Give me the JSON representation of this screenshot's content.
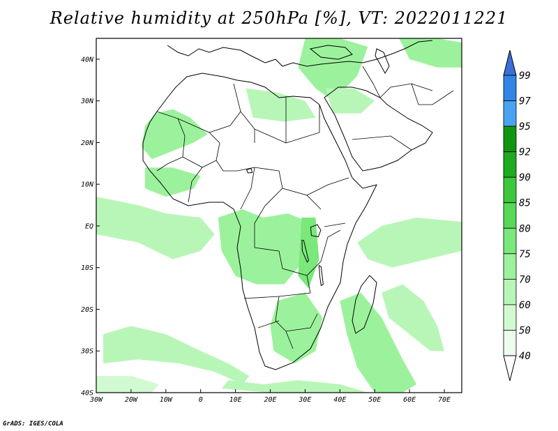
{
  "title": "Relative humidity at 250hPa [%], VT: 2022011221",
  "credit": "GrADS: IGES/COLA",
  "map": {
    "lon_range": [
      -30,
      75
    ],
    "lat_range": [
      -40,
      45
    ],
    "lon_ticks": [
      {
        "value": -30,
        "label": "30W"
      },
      {
        "value": -20,
        "label": "20W"
      },
      {
        "value": -10,
        "label": "10W"
      },
      {
        "value": 0,
        "label": "0"
      },
      {
        "value": 10,
        "label": "10E"
      },
      {
        "value": 20,
        "label": "20E"
      },
      {
        "value": 30,
        "label": "30E"
      },
      {
        "value": 40,
        "label": "40E"
      },
      {
        "value": 50,
        "label": "50E"
      },
      {
        "value": 60,
        "label": "60E"
      },
      {
        "value": 70,
        "label": "70E"
      }
    ],
    "lat_ticks": [
      {
        "value": 40,
        "label": "40N"
      },
      {
        "value": 30,
        "label": "30N"
      },
      {
        "value": 20,
        "label": "20N"
      },
      {
        "value": 10,
        "label": "10N"
      },
      {
        "value": 0,
        "label": "EQ"
      },
      {
        "value": -10,
        "label": "10S"
      },
      {
        "value": -20,
        "label": "20S"
      },
      {
        "value": -30,
        "label": "30S"
      },
      {
        "value": -40,
        "label": "40S"
      }
    ],
    "coastline_color": "#000000",
    "humid_regions": [
      {
        "name": "sahara-west-band",
        "level": 70,
        "points": [
          [
            -13,
            27
          ],
          [
            -8,
            28
          ],
          [
            -3,
            26
          ],
          [
            2,
            22
          ],
          [
            -2,
            20
          ],
          [
            -8,
            18
          ],
          [
            -14,
            16
          ],
          [
            -17,
            19
          ],
          [
            -16,
            24
          ]
        ]
      },
      {
        "name": "sahel-west",
        "level": 70,
        "points": [
          [
            -16,
            14
          ],
          [
            -8,
            14
          ],
          [
            0,
            12
          ],
          [
            -2,
            9
          ],
          [
            -10,
            7
          ],
          [
            -16,
            9
          ]
        ]
      },
      {
        "name": "libya-egypt",
        "level": 60,
        "points": [
          [
            13,
            33
          ],
          [
            22,
            32
          ],
          [
            30,
            30
          ],
          [
            33,
            26
          ],
          [
            24,
            25
          ],
          [
            15,
            26
          ]
        ]
      },
      {
        "name": "levant-turkey",
        "level": 70,
        "points": [
          [
            30,
            45
          ],
          [
            40,
            45
          ],
          [
            48,
            43
          ],
          [
            45,
            36
          ],
          [
            38,
            30
          ],
          [
            33,
            33
          ],
          [
            28,
            38
          ]
        ]
      },
      {
        "name": "arabia-north",
        "level": 60,
        "points": [
          [
            36,
            33
          ],
          [
            44,
            33
          ],
          [
            50,
            30
          ],
          [
            46,
            27
          ],
          [
            38,
            27
          ]
        ]
      },
      {
        "name": "iran-east",
        "level": 70,
        "points": [
          [
            57,
            45
          ],
          [
            68,
            45
          ],
          [
            75,
            44
          ],
          [
            75,
            38
          ],
          [
            68,
            38
          ],
          [
            60,
            40
          ]
        ]
      },
      {
        "name": "west-atlantic-tropics",
        "level": 60,
        "points": [
          [
            -30,
            7
          ],
          [
            -18,
            5
          ],
          [
            -10,
            3
          ],
          [
            0,
            2
          ],
          [
            4,
            -2
          ],
          [
            0,
            -6
          ],
          [
            -8,
            -8
          ],
          [
            -18,
            -4
          ],
          [
            -30,
            -2
          ]
        ]
      },
      {
        "name": "central-africa",
        "level": 70,
        "points": [
          [
            5,
            2
          ],
          [
            12,
            4
          ],
          [
            18,
            2
          ],
          [
            25,
            3
          ],
          [
            31,
            1
          ],
          [
            32,
            -5
          ],
          [
            28,
            -10
          ],
          [
            24,
            -14
          ],
          [
            16,
            -14
          ],
          [
            10,
            -12
          ],
          [
            6,
            -6
          ]
        ]
      },
      {
        "name": "rift-valley",
        "level": 75,
        "points": [
          [
            29,
            2
          ],
          [
            33,
            2
          ],
          [
            34,
            -8
          ],
          [
            31,
            -15
          ],
          [
            28,
            -12
          ]
        ]
      },
      {
        "name": "southern-africa",
        "level": 70,
        "points": [
          [
            22,
            -18
          ],
          [
            30,
            -16
          ],
          [
            35,
            -22
          ],
          [
            33,
            -30
          ],
          [
            27,
            -33
          ],
          [
            21,
            -30
          ],
          [
            20,
            -24
          ]
        ]
      },
      {
        "name": "indian-ocean-north",
        "level": 60,
        "points": [
          [
            45,
            -4
          ],
          [
            52,
            0
          ],
          [
            62,
            2
          ],
          [
            75,
            1
          ],
          [
            75,
            -6
          ],
          [
            65,
            -8
          ],
          [
            55,
            -10
          ],
          [
            48,
            -8
          ]
        ]
      },
      {
        "name": "mozambique-channel-plume",
        "level": 70,
        "points": [
          [
            40,
            -18
          ],
          [
            46,
            -16
          ],
          [
            52,
            -22
          ],
          [
            58,
            -32
          ],
          [
            62,
            -38
          ],
          [
            58,
            -40
          ],
          [
            50,
            -40
          ],
          [
            45,
            -34
          ],
          [
            42,
            -26
          ]
        ]
      },
      {
        "name": "madagascar-east-arc",
        "level": 60,
        "points": [
          [
            52,
            -16
          ],
          [
            58,
            -14
          ],
          [
            64,
            -18
          ],
          [
            68,
            -24
          ],
          [
            70,
            -30
          ],
          [
            66,
            -30
          ],
          [
            60,
            -26
          ],
          [
            54,
            -22
          ]
        ]
      },
      {
        "name": "south-atlantic-arc",
        "level": 60,
        "points": [
          [
            -28,
            -26
          ],
          [
            -20,
            -24
          ],
          [
            -10,
            -26
          ],
          [
            0,
            -30
          ],
          [
            8,
            -33
          ],
          [
            14,
            -36
          ],
          [
            12,
            -38
          ],
          [
            4,
            -35
          ],
          [
            -6,
            -33
          ],
          [
            -18,
            -32
          ],
          [
            -28,
            -33
          ]
        ]
      },
      {
        "name": "south-of-africa",
        "level": 60,
        "points": [
          [
            8,
            -37
          ],
          [
            18,
            -38
          ],
          [
            28,
            -37
          ],
          [
            40,
            -38
          ],
          [
            48,
            -40
          ],
          [
            20,
            -40
          ],
          [
            6,
            -39
          ]
        ]
      },
      {
        "name": "atlantic-south-lower",
        "level": 50,
        "points": [
          [
            -30,
            -36
          ],
          [
            -20,
            -36
          ],
          [
            -12,
            -38
          ],
          [
            -14,
            -40
          ],
          [
            -30,
            -40
          ]
        ]
      }
    ],
    "water_bodies": [
      {
        "name": "lake-victoria",
        "points": [
          [
            31.6,
            -0.3
          ],
          [
            33.5,
            0.3
          ],
          [
            34.5,
            -1
          ],
          [
            33.8,
            -2.6
          ],
          [
            31.8,
            -2.3
          ]
        ]
      },
      {
        "name": "lake-tanganyika",
        "points": [
          [
            29.1,
            -3.4
          ],
          [
            29.6,
            -3.5
          ],
          [
            31,
            -8.3
          ],
          [
            30.6,
            -8.7
          ],
          [
            29.2,
            -6
          ]
        ]
      },
      {
        "name": "lake-malawi",
        "points": [
          [
            34,
            -9.5
          ],
          [
            34.6,
            -9.8
          ],
          [
            35.2,
            -14
          ],
          [
            34.6,
            -14.3
          ],
          [
            34.2,
            -12
          ]
        ]
      },
      {
        "name": "lake-chad",
        "points": [
          [
            13.2,
            13.5
          ],
          [
            14.5,
            13.8
          ],
          [
            14.8,
            12.8
          ],
          [
            13.6,
            12.7
          ]
        ]
      }
    ]
  },
  "colorbar": {
    "levels": [
      "99",
      "97",
      "95",
      "92",
      "90",
      "85",
      "80",
      "75",
      "70",
      "60",
      "50",
      "40"
    ],
    "colors": [
      "#3a6fd6",
      "#2f86e6",
      "#4aa3f0",
      "#119611",
      "#1faa1f",
      "#3cc83c",
      "#57d957",
      "#7ae87a",
      "#9cf29c",
      "#b8f6b8",
      "#d2fad2",
      "#ecfdec"
    ]
  }
}
